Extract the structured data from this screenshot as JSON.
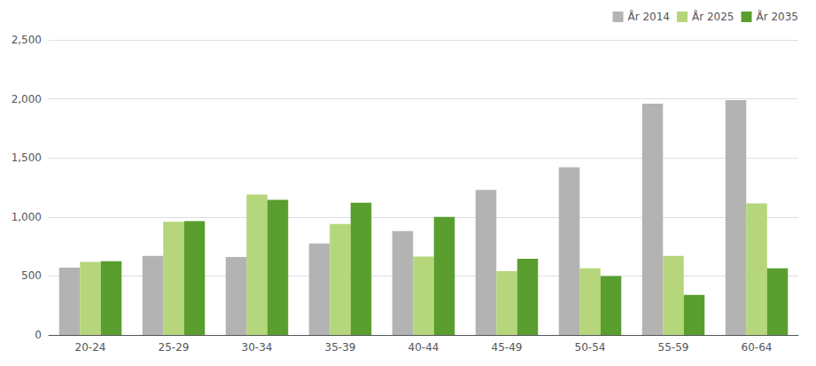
{
  "chart_data": {
    "type": "bar",
    "categories": [
      "20-24",
      "25-29",
      "30-34",
      "35-39",
      "40-44",
      "45-49",
      "50-54",
      "55-59",
      "60-64"
    ],
    "series": [
      {
        "name": "År 2014",
        "color": "#b3b3b3",
        "values": [
          570,
          670,
          660,
          775,
          880,
          1230,
          1420,
          1960,
          1990
        ]
      },
      {
        "name": "År 2025",
        "color": "#b5d67a",
        "values": [
          620,
          960,
          1190,
          940,
          665,
          540,
          565,
          670,
          1115
        ]
      },
      {
        "name": "År 2035",
        "color": "#5a9e2f",
        "values": [
          625,
          965,
          1145,
          1120,
          1000,
          645,
          500,
          340,
          565
        ]
      }
    ],
    "ylim": [
      0,
      2500
    ],
    "yticks": [
      0,
      500,
      1000,
      1500,
      2000,
      2500
    ],
    "grid": true,
    "legend": "top-right"
  }
}
